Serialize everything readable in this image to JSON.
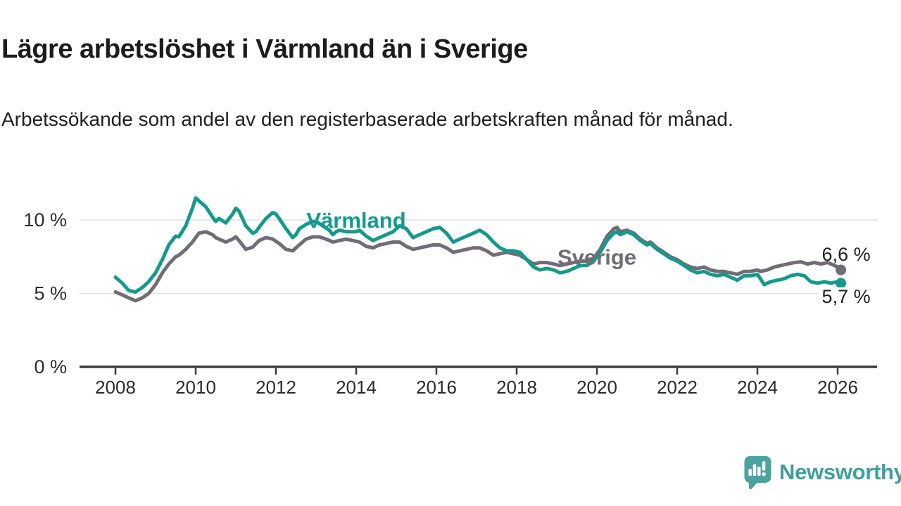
{
  "header": {
    "title": "Lägre arbetslöshet i Värmland än i Sverige",
    "subtitle": "Arbetssökande som andel av den registerbaserade arbetskraften månad för månad."
  },
  "branding": {
    "name": "Newsworthy",
    "icon": "newsworthy-speech-bubble-bar-chart-icon",
    "text_color": "#3f9f9e",
    "icon_color": "#4aa2a1"
  },
  "chart_data": {
    "type": "line",
    "unit": "%",
    "title": "",
    "xlabel": "",
    "ylabel": "",
    "grid": "horizontal-only",
    "x_axis": {
      "min": 2008,
      "max": 2026.17,
      "ticks": [
        2008,
        2010,
        2012,
        2014,
        2016,
        2018,
        2020,
        2022,
        2024,
        2026
      ]
    },
    "y_axis": {
      "min": 0,
      "max": 12,
      "ticks": [
        {
          "value": 0,
          "label": "0 %"
        },
        {
          "value": 5,
          "label": "5 %"
        },
        {
          "value": 10,
          "label": "10 %"
        }
      ]
    },
    "colors": {
      "axis": "#3c3c3c",
      "grid": "#dfdfdf",
      "tick_text": "#2b2b2b",
      "end_label_text": "#1f1f1f"
    },
    "series": [
      {
        "name": "Sverige",
        "color": "#716c75",
        "end_label": "6,6 %",
        "end_label_side": "above",
        "label_anchor": {
          "x": 2020.0,
          "y": 7.45
        },
        "points": [
          [
            2008.0,
            5.1
          ],
          [
            2008.17,
            4.9
          ],
          [
            2008.33,
            4.7
          ],
          [
            2008.5,
            4.5
          ],
          [
            2008.67,
            4.7
          ],
          [
            2008.83,
            5.0
          ],
          [
            2009.0,
            5.6
          ],
          [
            2009.17,
            6.4
          ],
          [
            2009.33,
            7.0
          ],
          [
            2009.5,
            7.5
          ],
          [
            2009.58,
            7.6
          ],
          [
            2009.75,
            8.0
          ],
          [
            2009.92,
            8.5
          ],
          [
            2010.0,
            8.8
          ],
          [
            2010.08,
            9.1
          ],
          [
            2010.25,
            9.2
          ],
          [
            2010.42,
            9.0
          ],
          [
            2010.5,
            8.8
          ],
          [
            2010.58,
            8.7
          ],
          [
            2010.75,
            8.5
          ],
          [
            2010.92,
            8.7
          ],
          [
            2011.0,
            8.85
          ],
          [
            2011.08,
            8.6
          ],
          [
            2011.25,
            8.0
          ],
          [
            2011.42,
            8.15
          ],
          [
            2011.58,
            8.6
          ],
          [
            2011.75,
            8.8
          ],
          [
            2011.92,
            8.7
          ],
          [
            2012.08,
            8.4
          ],
          [
            2012.25,
            8.0
          ],
          [
            2012.42,
            7.9
          ],
          [
            2012.58,
            8.3
          ],
          [
            2012.75,
            8.7
          ],
          [
            2012.92,
            8.85
          ],
          [
            2013.08,
            8.85
          ],
          [
            2013.25,
            8.7
          ],
          [
            2013.42,
            8.5
          ],
          [
            2013.58,
            8.6
          ],
          [
            2013.75,
            8.7
          ],
          [
            2013.92,
            8.6
          ],
          [
            2014.08,
            8.5
          ],
          [
            2014.25,
            8.2
          ],
          [
            2014.42,
            8.1
          ],
          [
            2014.58,
            8.3
          ],
          [
            2014.75,
            8.4
          ],
          [
            2014.92,
            8.5
          ],
          [
            2015.08,
            8.5
          ],
          [
            2015.25,
            8.2
          ],
          [
            2015.42,
            8.0
          ],
          [
            2015.58,
            8.1
          ],
          [
            2015.75,
            8.2
          ],
          [
            2015.92,
            8.3
          ],
          [
            2016.08,
            8.3
          ],
          [
            2016.25,
            8.1
          ],
          [
            2016.42,
            7.8
          ],
          [
            2016.58,
            7.9
          ],
          [
            2016.75,
            8.0
          ],
          [
            2016.92,
            8.1
          ],
          [
            2017.08,
            8.1
          ],
          [
            2017.25,
            7.9
          ],
          [
            2017.42,
            7.6
          ],
          [
            2017.58,
            7.7
          ],
          [
            2017.75,
            7.8
          ],
          [
            2017.92,
            7.7
          ],
          [
            2018.08,
            7.6
          ],
          [
            2018.25,
            7.3
          ],
          [
            2018.42,
            7.0
          ],
          [
            2018.58,
            7.1
          ],
          [
            2018.75,
            7.1
          ],
          [
            2018.92,
            7.0
          ],
          [
            2019.08,
            6.9
          ],
          [
            2019.25,
            7.0
          ],
          [
            2019.42,
            7.1
          ],
          [
            2019.58,
            7.2
          ],
          [
            2019.75,
            7.2
          ],
          [
            2019.92,
            7.4
          ],
          [
            2020.08,
            8.0
          ],
          [
            2020.25,
            8.9
          ],
          [
            2020.42,
            9.4
          ],
          [
            2020.5,
            9.5
          ],
          [
            2020.58,
            9.2
          ],
          [
            2020.75,
            9.3
          ],
          [
            2020.92,
            9.1
          ],
          [
            2021.08,
            8.7
          ],
          [
            2021.25,
            8.4
          ],
          [
            2021.33,
            8.5
          ],
          [
            2021.5,
            8.1
          ],
          [
            2021.67,
            7.8
          ],
          [
            2021.83,
            7.5
          ],
          [
            2022.0,
            7.3
          ],
          [
            2022.17,
            7.0
          ],
          [
            2022.33,
            6.8
          ],
          [
            2022.5,
            6.7
          ],
          [
            2022.67,
            6.8
          ],
          [
            2022.83,
            6.6
          ],
          [
            2023.0,
            6.5
          ],
          [
            2023.17,
            6.5
          ],
          [
            2023.33,
            6.4
          ],
          [
            2023.5,
            6.3
          ],
          [
            2023.67,
            6.5
          ],
          [
            2023.83,
            6.5
          ],
          [
            2024.0,
            6.6
          ],
          [
            2024.08,
            6.5
          ],
          [
            2024.25,
            6.6
          ],
          [
            2024.42,
            6.8
          ],
          [
            2024.58,
            6.9
          ],
          [
            2024.75,
            7.0
          ],
          [
            2024.92,
            7.1
          ],
          [
            2025.08,
            7.15
          ],
          [
            2025.25,
            7.0
          ],
          [
            2025.42,
            7.1
          ],
          [
            2025.58,
            7.0
          ],
          [
            2025.75,
            7.1
          ],
          [
            2025.92,
            6.9
          ],
          [
            2026.0,
            6.8
          ],
          [
            2026.08,
            6.6
          ]
        ]
      },
      {
        "name": "Värmland",
        "color": "#149a8d",
        "end_label": "5,7 %",
        "end_label_side": "below",
        "label_anchor": {
          "x": 2014.0,
          "y": 9.95
        },
        "points": [
          [
            2008.0,
            6.1
          ],
          [
            2008.17,
            5.7
          ],
          [
            2008.33,
            5.2
          ],
          [
            2008.5,
            5.1
          ],
          [
            2008.67,
            5.4
          ],
          [
            2008.83,
            5.8
          ],
          [
            2009.0,
            6.4
          ],
          [
            2009.17,
            7.3
          ],
          [
            2009.33,
            8.3
          ],
          [
            2009.5,
            8.9
          ],
          [
            2009.58,
            8.85
          ],
          [
            2009.75,
            9.6
          ],
          [
            2009.92,
            10.8
          ],
          [
            2010.0,
            11.5
          ],
          [
            2010.08,
            11.3
          ],
          [
            2010.25,
            10.9
          ],
          [
            2010.42,
            10.2
          ],
          [
            2010.5,
            9.9
          ],
          [
            2010.58,
            10.1
          ],
          [
            2010.75,
            9.8
          ],
          [
            2010.92,
            10.4
          ],
          [
            2011.0,
            10.8
          ],
          [
            2011.08,
            10.6
          ],
          [
            2011.25,
            9.6
          ],
          [
            2011.42,
            9.1
          ],
          [
            2011.5,
            9.2
          ],
          [
            2011.58,
            9.5
          ],
          [
            2011.75,
            10.1
          ],
          [
            2011.92,
            10.5
          ],
          [
            2012.0,
            10.4
          ],
          [
            2012.08,
            10.1
          ],
          [
            2012.25,
            9.4
          ],
          [
            2012.42,
            8.8
          ],
          [
            2012.5,
            9.0
          ],
          [
            2012.58,
            9.4
          ],
          [
            2012.75,
            9.7
          ],
          [
            2012.92,
            9.9
          ],
          [
            2013.0,
            9.9
          ],
          [
            2013.17,
            9.6
          ],
          [
            2013.33,
            9.3
          ],
          [
            2013.42,
            9.0
          ],
          [
            2013.5,
            9.2
          ],
          [
            2013.58,
            9.3
          ],
          [
            2013.75,
            9.2
          ],
          [
            2013.92,
            9.2
          ],
          [
            2014.0,
            9.2
          ],
          [
            2014.08,
            9.3
          ],
          [
            2014.25,
            8.9
          ],
          [
            2014.42,
            8.6
          ],
          [
            2014.58,
            8.8
          ],
          [
            2014.75,
            9.0
          ],
          [
            2014.92,
            9.2
          ],
          [
            2015.08,
            9.6
          ],
          [
            2015.25,
            9.4
          ],
          [
            2015.42,
            8.8
          ],
          [
            2015.58,
            9.0
          ],
          [
            2015.75,
            9.2
          ],
          [
            2015.92,
            9.4
          ],
          [
            2016.08,
            9.5
          ],
          [
            2016.25,
            9.1
          ],
          [
            2016.42,
            8.5
          ],
          [
            2016.58,
            8.7
          ],
          [
            2016.75,
            8.9
          ],
          [
            2016.92,
            9.1
          ],
          [
            2017.08,
            9.3
          ],
          [
            2017.25,
            9.0
          ],
          [
            2017.42,
            8.5
          ],
          [
            2017.58,
            8.1
          ],
          [
            2017.75,
            7.9
          ],
          [
            2017.92,
            7.9
          ],
          [
            2018.08,
            7.8
          ],
          [
            2018.25,
            7.3
          ],
          [
            2018.42,
            6.8
          ],
          [
            2018.58,
            6.6
          ],
          [
            2018.75,
            6.7
          ],
          [
            2018.92,
            6.6
          ],
          [
            2019.08,
            6.4
          ],
          [
            2019.25,
            6.5
          ],
          [
            2019.42,
            6.7
          ],
          [
            2019.58,
            6.9
          ],
          [
            2019.75,
            6.9
          ],
          [
            2019.92,
            7.2
          ],
          [
            2020.08,
            7.8
          ],
          [
            2020.25,
            8.6
          ],
          [
            2020.42,
            9.1
          ],
          [
            2020.5,
            9.2
          ],
          [
            2020.58,
            9.0
          ],
          [
            2020.75,
            9.2
          ],
          [
            2020.92,
            9.0
          ],
          [
            2021.08,
            8.6
          ],
          [
            2021.25,
            8.3
          ],
          [
            2021.33,
            8.4
          ],
          [
            2021.5,
            8.0
          ],
          [
            2021.67,
            7.7
          ],
          [
            2021.83,
            7.4
          ],
          [
            2022.0,
            7.2
          ],
          [
            2022.17,
            6.9
          ],
          [
            2022.33,
            6.6
          ],
          [
            2022.5,
            6.4
          ],
          [
            2022.67,
            6.5
          ],
          [
            2022.83,
            6.3
          ],
          [
            2023.0,
            6.2
          ],
          [
            2023.17,
            6.3
          ],
          [
            2023.33,
            6.1
          ],
          [
            2023.5,
            5.9
          ],
          [
            2023.67,
            6.2
          ],
          [
            2023.83,
            6.2
          ],
          [
            2024.0,
            6.3
          ],
          [
            2024.17,
            5.6
          ],
          [
            2024.33,
            5.8
          ],
          [
            2024.5,
            5.9
          ],
          [
            2024.67,
            6.0
          ],
          [
            2024.83,
            6.2
          ],
          [
            2025.0,
            6.3
          ],
          [
            2025.17,
            6.2
          ],
          [
            2025.33,
            5.8
          ],
          [
            2025.5,
            5.7
          ],
          [
            2025.67,
            5.8
          ],
          [
            2025.83,
            5.7
          ],
          [
            2026.0,
            5.8
          ],
          [
            2026.08,
            5.7
          ]
        ]
      }
    ]
  }
}
